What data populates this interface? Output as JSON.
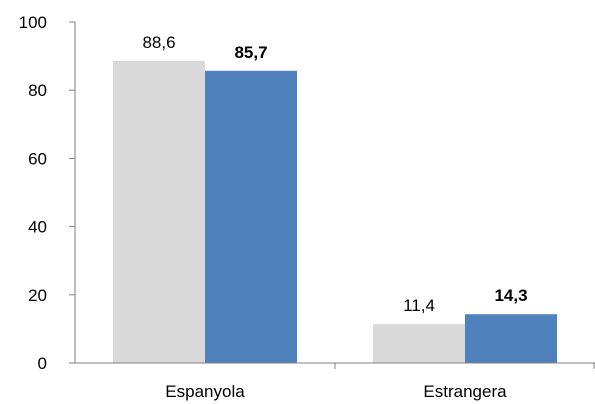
{
  "chart_data": {
    "type": "bar",
    "categories": [
      "Espanyola",
      "Estrangera"
    ],
    "series": [
      {
        "values": [
          88.6,
          11.4
        ],
        "value_labels": [
          "88,6",
          "11,4"
        ],
        "color": "#d9d9d9",
        "label_bold": false
      },
      {
        "values": [
          85.7,
          14.3
        ],
        "value_labels": [
          "85,7",
          "14,3"
        ],
        "color": "#4f81bd",
        "label_bold": true
      }
    ],
    "y_ticks": [
      "0",
      "20",
      "40",
      "60",
      "80",
      "100"
    ],
    "ylim": [
      0,
      100
    ],
    "grid": false,
    "title": "",
    "xlabel": "",
    "ylabel": ""
  }
}
